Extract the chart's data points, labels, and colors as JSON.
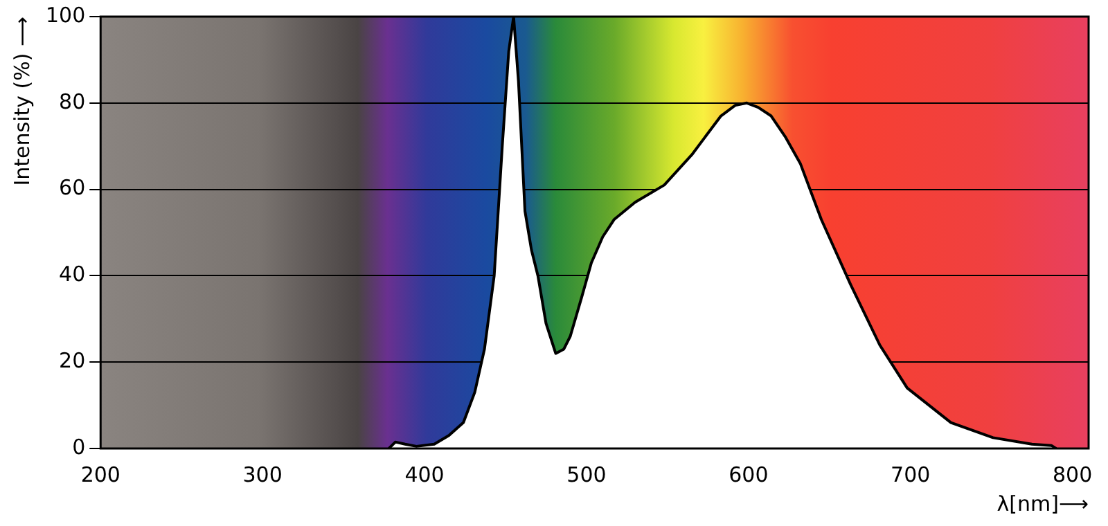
{
  "chart_data": {
    "type": "area",
    "xlabel": "λ[nm]⟶",
    "ylabel": "Intensity (%) ⟶",
    "series": [
      {
        "color": "#000000",
        "x": [
          378,
          382,
          388,
          395,
          406,
          415,
          424,
          431,
          437,
          443,
          448,
          452,
          455,
          458,
          462,
          466,
          470,
          475,
          481,
          486,
          490,
          497,
          503,
          510,
          517,
          530,
          548,
          565,
          583,
          592,
          599,
          606,
          614,
          623,
          632,
          645,
          663,
          681,
          698,
          725,
          751,
          775,
          787,
          790
        ],
        "values": [
          0,
          1.5,
          1,
          0.5,
          1,
          3,
          6,
          13,
          23,
          40,
          70,
          92,
          100,
          85,
          55,
          46,
          40,
          29,
          22,
          23,
          26,
          35,
          43,
          49,
          53,
          57,
          61,
          68,
          77,
          79.5,
          80,
          79,
          77,
          72,
          66,
          53,
          38,
          24,
          14,
          6,
          2.5,
          1,
          0.7,
          0
        ]
      }
    ],
    "xlim": [
      200,
      810
    ],
    "ylim": [
      0,
      100
    ],
    "xticks": [
      200,
      300,
      400,
      500,
      600,
      700,
      800
    ],
    "yticks": [
      0,
      20,
      40,
      60,
      80,
      100
    ],
    "grid": "y",
    "legend": false,
    "marker": "none",
    "line_style": "solid"
  }
}
